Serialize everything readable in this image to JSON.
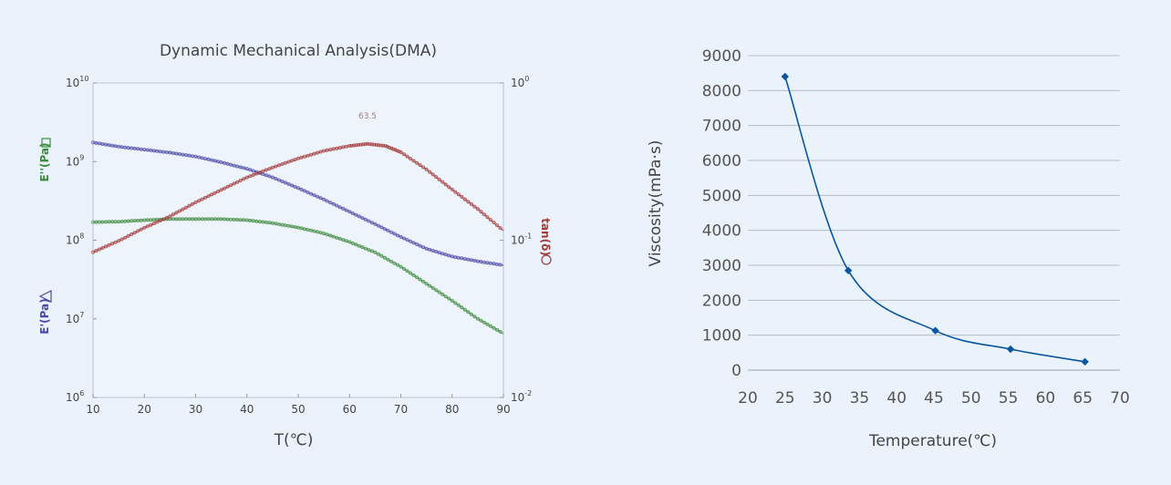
{
  "chart_data": [
    {
      "type": "line",
      "title": "Dynamic Mechanical Analysis(DMA)",
      "xlabel": "T(℃)",
      "ylabel_left_top": "E''(Pa)",
      "ylabel_left_bottom": "E'(Pa)",
      "ylabel_right": "tan(δ)",
      "yscale": "log",
      "y2scale": "log",
      "xlim": [
        10,
        90
      ],
      "ylim": [
        1000000,
        10000000000
      ],
      "y2lim": [
        0.01,
        1
      ],
      "x_ticks": [
        10,
        20,
        30,
        40,
        50,
        60,
        70,
        80,
        90
      ],
      "y_ticks": [
        {
          "base": "10",
          "exp": "6"
        },
        {
          "base": "10",
          "exp": "7"
        },
        {
          "base": "10",
          "exp": "8"
        },
        {
          "base": "10",
          "exp": "9"
        },
        {
          "base": "10",
          "exp": "10"
        }
      ],
      "y2_ticks": [
        {
          "base": "10",
          "exp": "-2"
        },
        {
          "base": "10",
          "exp": "-1"
        },
        {
          "base": "10",
          "exp": "0"
        }
      ],
      "annotation": "63.5",
      "grid": false,
      "series": [
        {
          "key": "E_storage",
          "marker": "triangle",
          "color": "#4a4aa6",
          "axis": "left",
          "x": [
            10,
            15,
            20,
            25,
            30,
            35,
            40,
            45,
            50,
            55,
            60,
            65,
            70,
            75,
            80,
            85,
            90
          ],
          "y": [
            1750000000.0,
            1550000000.0,
            1420000000.0,
            1300000000.0,
            1160000000.0,
            980000000.0,
            810000000.0,
            630000000.0,
            460000000.0,
            330000000.0,
            230000000.0,
            160000000.0,
            110000000.0,
            78000000.0,
            62000000.0,
            54000000.0,
            48000000.0
          ]
        },
        {
          "key": "E_loss",
          "marker": "square",
          "color": "#3e8a3e",
          "axis": "left",
          "x": [
            10,
            15,
            20,
            25,
            30,
            35,
            40,
            45,
            50,
            55,
            60,
            65,
            70,
            75,
            80,
            85,
            90
          ],
          "y": [
            170000000.0,
            172000000.0,
            180000000.0,
            186000000.0,
            186000000.0,
            186000000.0,
            180000000.0,
            165000000.0,
            145000000.0,
            122000000.0,
            95000000.0,
            70000000.0,
            46000000.0,
            28000000.0,
            17000000.0,
            10000000.0,
            6500000.0
          ]
        },
        {
          "key": "tan_delta",
          "marker": "circle",
          "color": "#a33a3a",
          "axis": "right",
          "x": [
            10,
            15,
            20,
            25,
            30,
            35,
            40,
            45,
            50,
            55,
            60,
            63.5,
            67,
            70,
            75,
            80,
            85,
            90
          ],
          "y": [
            0.084,
            0.099,
            0.12,
            0.142,
            0.174,
            0.209,
            0.251,
            0.29,
            0.331,
            0.37,
            0.398,
            0.41,
            0.398,
            0.363,
            0.282,
            0.21,
            0.158,
            0.115
          ]
        }
      ]
    },
    {
      "type": "line",
      "title": "",
      "xlabel": "Temperature(℃)",
      "ylabel": "Viscosity(mPa·s)",
      "xlim": [
        20,
        70
      ],
      "ylim": [
        0,
        9000
      ],
      "x_ticks": [
        20,
        25,
        30,
        35,
        40,
        45,
        50,
        55,
        60,
        65,
        70
      ],
      "y_ticks": [
        0,
        1000,
        2000,
        3000,
        4000,
        5000,
        6000,
        7000,
        8000,
        9000
      ],
      "grid": true,
      "series": [
        {
          "marker": "diamond",
          "color": "#0a55a0",
          "x": [
            25,
            33.5,
            45.2,
            55.3,
            65.3
          ],
          "y": [
            8400,
            2850,
            1130,
            600,
            240
          ]
        }
      ]
    }
  ]
}
